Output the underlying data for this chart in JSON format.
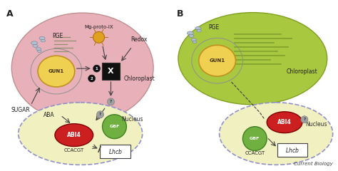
{
  "bg_color": "#ffffff",
  "footer": "Current Biology",
  "A_label": "A",
  "B_label": "B",
  "chloro_A_color": "#e8b0b8",
  "chloro_A_ec": "#c09090",
  "chloro_B_color": "#a8c840",
  "chloro_B_ec": "#80a020",
  "nucleus_color": "#f0f0c0",
  "nucleus_ec": "#9090cc",
  "gun1_color": "#f0d050",
  "gun1_ec": "#c09020",
  "abi4_color": "#cc2020",
  "abi4_ec": "#800000",
  "gbf_color": "#70b040",
  "gbf_ec": "#408020",
  "xbox_color": "#101010",
  "ribosome_color": "#b0c0d0",
  "ribosome_ec": "#708090",
  "mrna_color": "#909070",
  "mrna_B_color": "#80a030",
  "arrow_color": "#404040",
  "qmark_color": "#a0a0a0",
  "qmark_ec": "#808080",
  "sun_color": "#e0a020",
  "sun_ec": "#b07010"
}
